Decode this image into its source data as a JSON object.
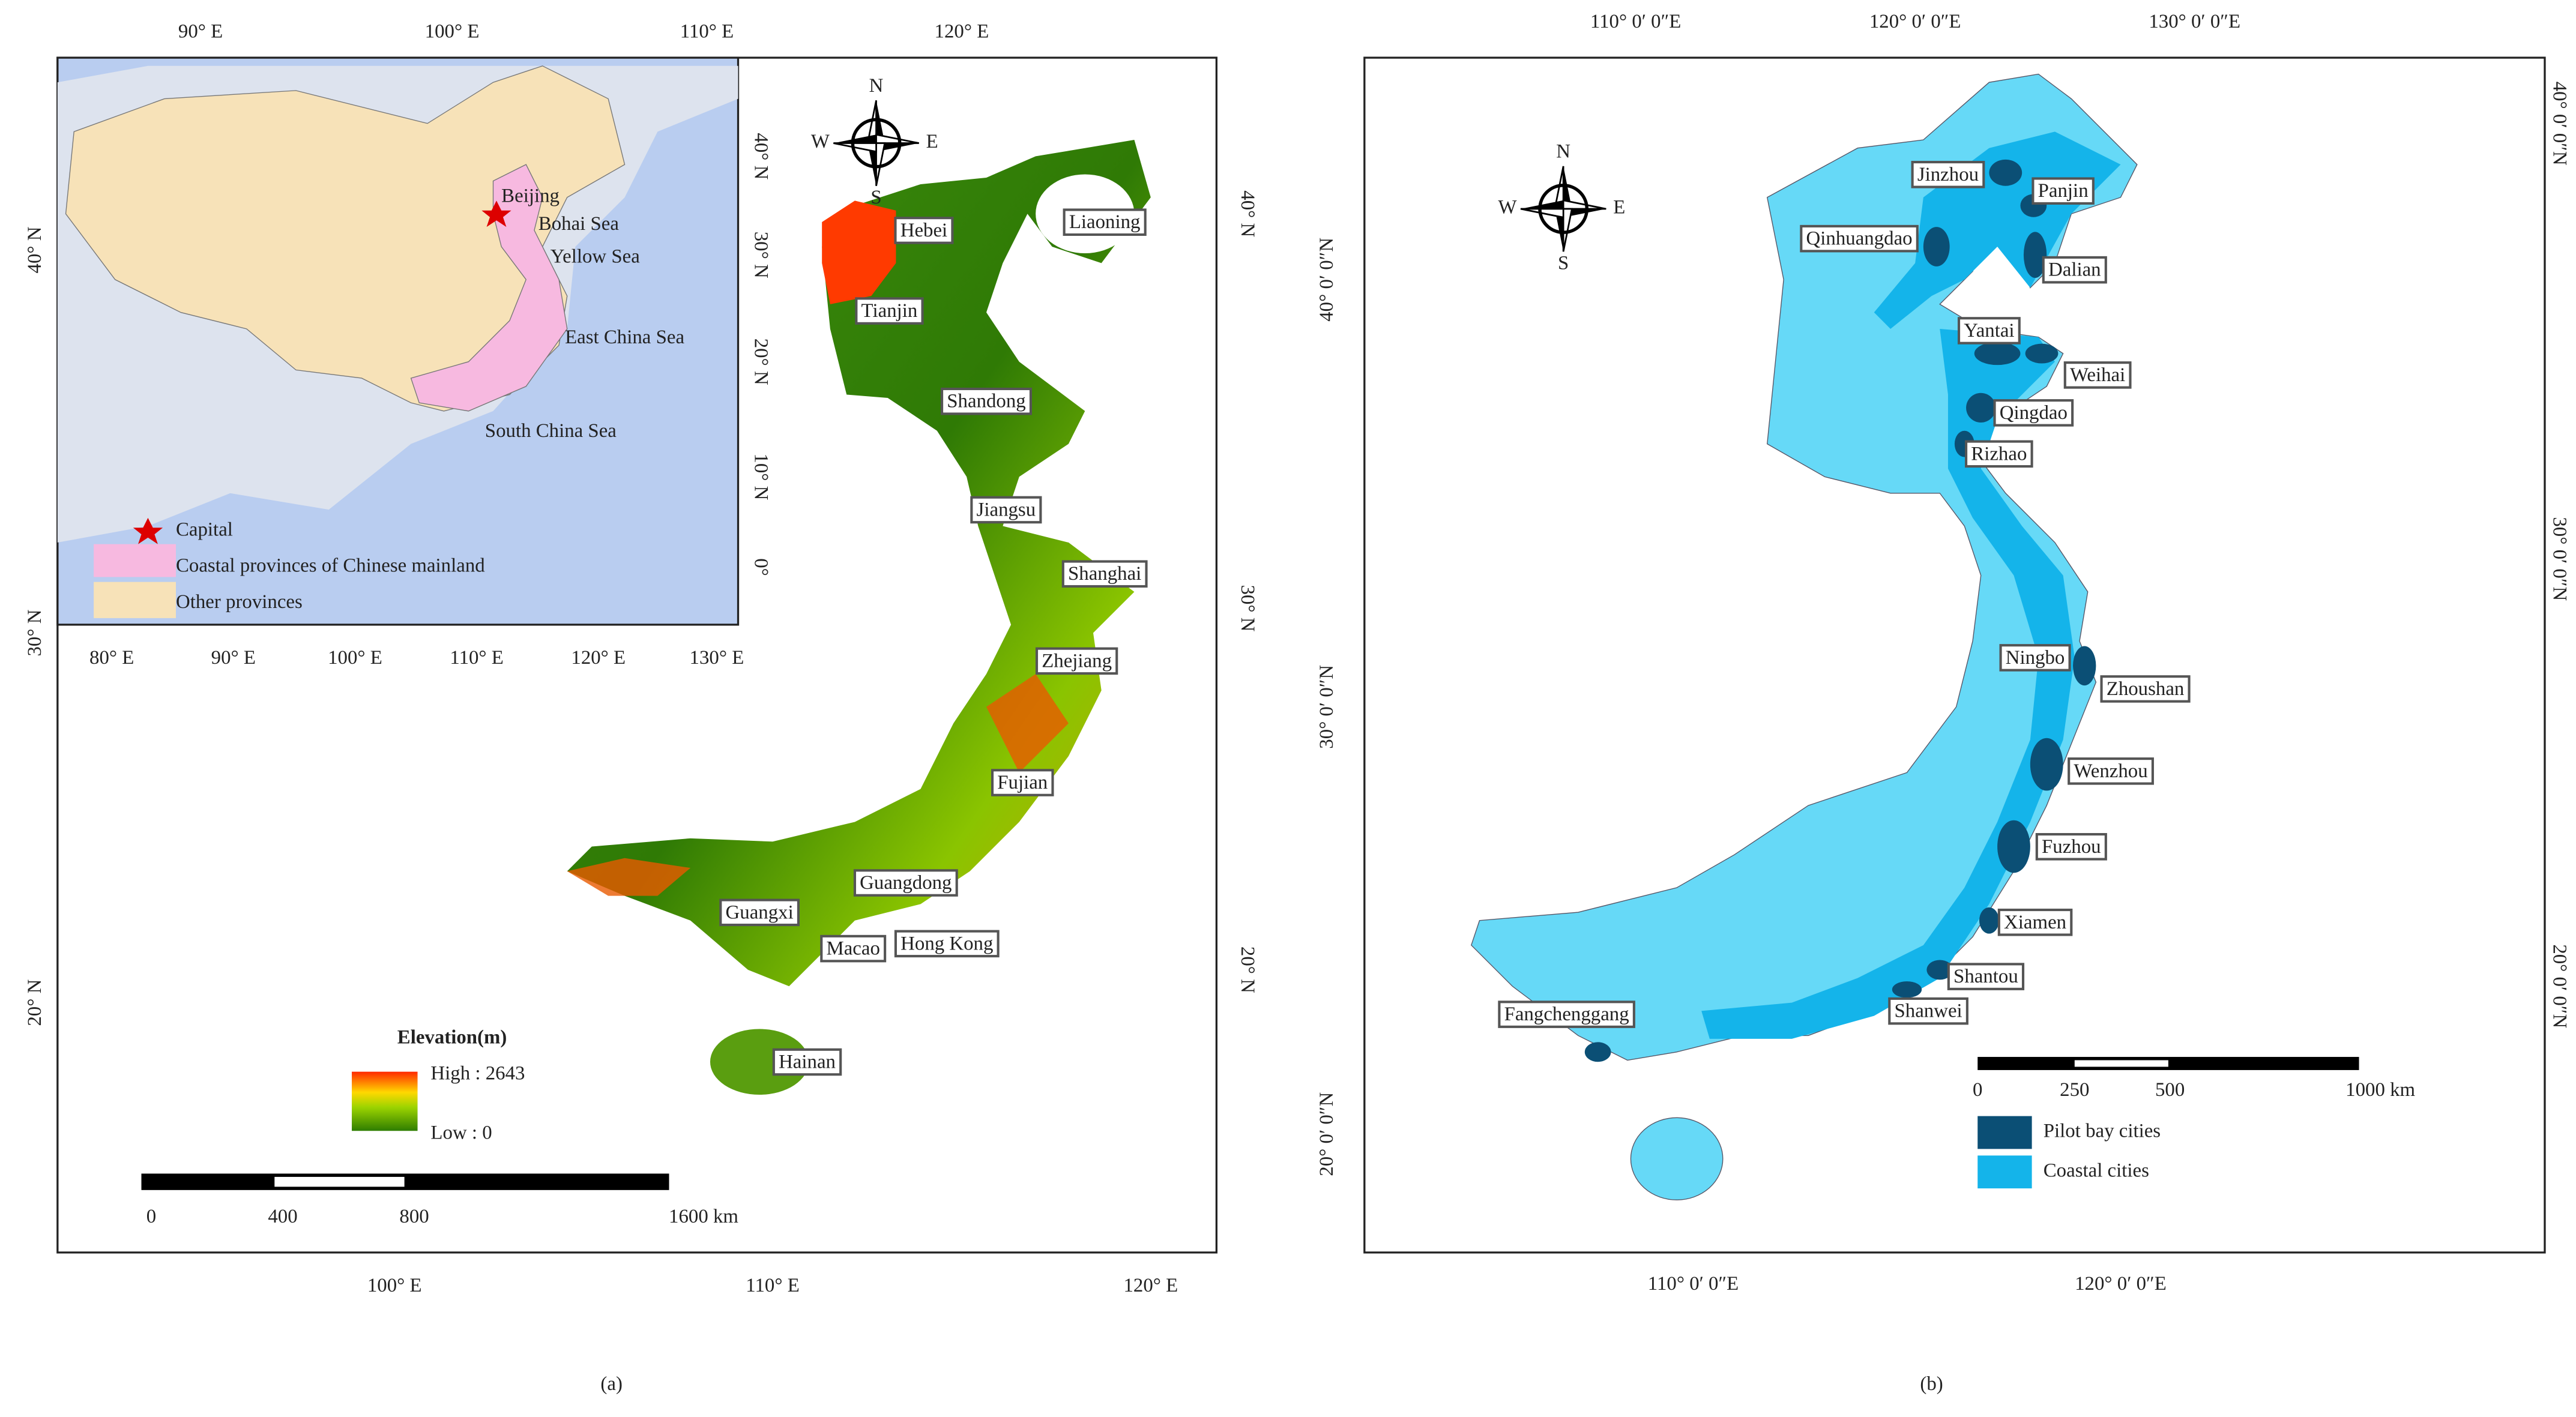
{
  "panel_a": {
    "caption": "(a)",
    "top_lon": [
      "90° E",
      "100° E",
      "110° E",
      "120° E"
    ],
    "bottom_lon": [
      "100° E",
      "110° E",
      "120° E"
    ],
    "left_lat": [
      "40° N",
      "30° N",
      "20° N"
    ],
    "right_lat": [
      "40° N",
      "30° N",
      "20° N"
    ],
    "inset": {
      "bottom_lon": [
        "80° E",
        "90° E",
        "100° E",
        "110° E",
        "120° E",
        "130° E"
      ],
      "right_lat": [
        "40° N",
        "30° N",
        "20° N",
        "10° N",
        "0°"
      ],
      "capital": "Beijing",
      "seas": [
        "Bohai Sea",
        "Yellow Sea",
        "East China Sea",
        "South China Sea"
      ],
      "legend": [
        "Capital",
        "Coastal provinces of Chinese mainland",
        "Other provinces"
      ]
    },
    "compass": [
      "N",
      "E",
      "S",
      "W"
    ],
    "provinces": [
      "Hebei",
      "Liaoning",
      "Tianjin",
      "Shandong",
      "Jiangsu",
      "Shanghai",
      "Zhejiang",
      "Fujian",
      "Guangdong",
      "Guangxi",
      "Macao",
      "Hong Kong",
      "Hainan"
    ],
    "elevation": {
      "title": "Elevation(m)",
      "high": "High : 2643",
      "low": "Low : 0"
    },
    "scale": [
      "0",
      "400",
      "800",
      "1600 km"
    ]
  },
  "panel_b": {
    "caption": "(b)",
    "top_lon": [
      "110° 0′ 0″E",
      "120° 0′ 0″E",
      "130° 0′ 0″E"
    ],
    "bottom_lon": [
      "110° 0′ 0″E",
      "120° 0′ 0″E"
    ],
    "left_lat": [
      "40° 0′ 0″N",
      "30° 0′ 0″N",
      "20° 0′ 0″N"
    ],
    "right_lat": [
      "40° 0′ 0″N",
      "30° 0′ 0″N",
      "20° 0′ 0″N"
    ],
    "compass": [
      "N",
      "E",
      "S",
      "W"
    ],
    "cities": [
      "Jinzhou",
      "Panjin",
      "Qinhuangdao",
      "Dalian",
      "Yantai",
      "Weihai",
      "Qingdao",
      "Rizhao",
      "Ningbo",
      "Zhoushan",
      "Wenzhou",
      "Fuzhou",
      "Xiamen",
      "Shantou",
      "Shanwei",
      "Fangchenggang"
    ],
    "scale": [
      "0",
      "250",
      "500",
      "1000 km"
    ],
    "legend": [
      "Pilot bay cities",
      "Coastal cities"
    ]
  }
}
